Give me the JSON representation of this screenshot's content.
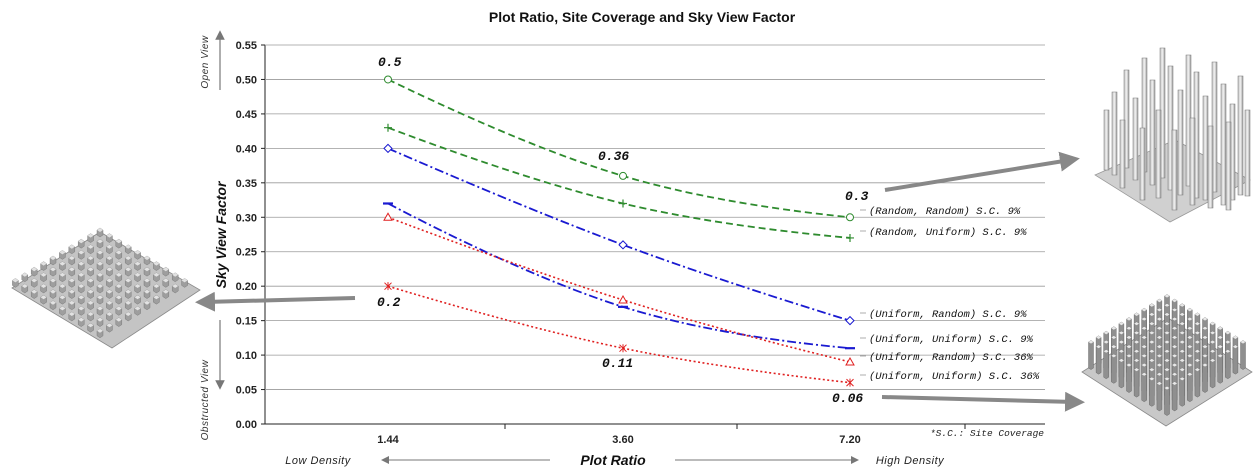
{
  "chart_data": {
    "type": "line",
    "title": "Plot Ratio, Site Coverage and Sky View Factor",
    "ylabel": "Sky View Factor",
    "xlabel": "Plot Ratio",
    "y_top_label": "Open View",
    "y_bottom_label": "Obstructed View",
    "x_left_label": "Low Density",
    "x_right_label": "High Density",
    "note": "*S.C.: Site Coverage",
    "categories": [
      "1.44",
      "3.60",
      "7.20"
    ],
    "ylim": [
      0,
      0.55
    ],
    "y_ticks": [
      "0.00",
      "0.05",
      "0.10",
      "0.15",
      "0.20",
      "0.25",
      "0.30",
      "0.35",
      "0.40",
      "0.45",
      "0.50",
      "0.55"
    ],
    "grid": true,
    "series": [
      {
        "name": "(Random, Random) S.C. 9%",
        "values": [
          0.5,
          0.36,
          0.3
        ],
        "color": "#2e8b2e",
        "marker": "circle",
        "dash": "long"
      },
      {
        "name": "(Random, Uniform) S.C. 9%",
        "values": [
          0.43,
          0.32,
          0.27
        ],
        "color": "#2e8b2e",
        "marker": "plus",
        "dash": "long"
      },
      {
        "name": "(Uniform, Random) S.C. 9%",
        "values": [
          0.4,
          0.26,
          0.15
        ],
        "color": "#1a1ad1",
        "marker": "diamond",
        "dash": "dashdot"
      },
      {
        "name": "(Uniform, Uniform) S.C. 9%",
        "values": [
          0.32,
          0.17,
          0.11
        ],
        "color": "#1a1ad1",
        "marker": "dash",
        "dash": "dashdot"
      },
      {
        "name": "(Uniform, Random) S.C. 36%",
        "values": [
          0.3,
          0.18,
          0.09
        ],
        "color": "#e02020",
        "marker": "triangle",
        "dash": "dotted"
      },
      {
        "name": "(Uniform, Uniform) S.C. 36%",
        "values": [
          0.2,
          0.11,
          0.06
        ],
        "color": "#e02020",
        "marker": "star",
        "dash": "dotted"
      }
    ],
    "annotations": [
      {
        "text": "0.5",
        "value": 0.5
      },
      {
        "text": "0.36",
        "value": 0.36
      },
      {
        "text": "0.3",
        "value": 0.3
      },
      {
        "text": "0.2",
        "value": 0.2
      },
      {
        "text": "0.11",
        "value": 0.11
      },
      {
        "text": "0.06",
        "value": 0.06
      }
    ]
  }
}
